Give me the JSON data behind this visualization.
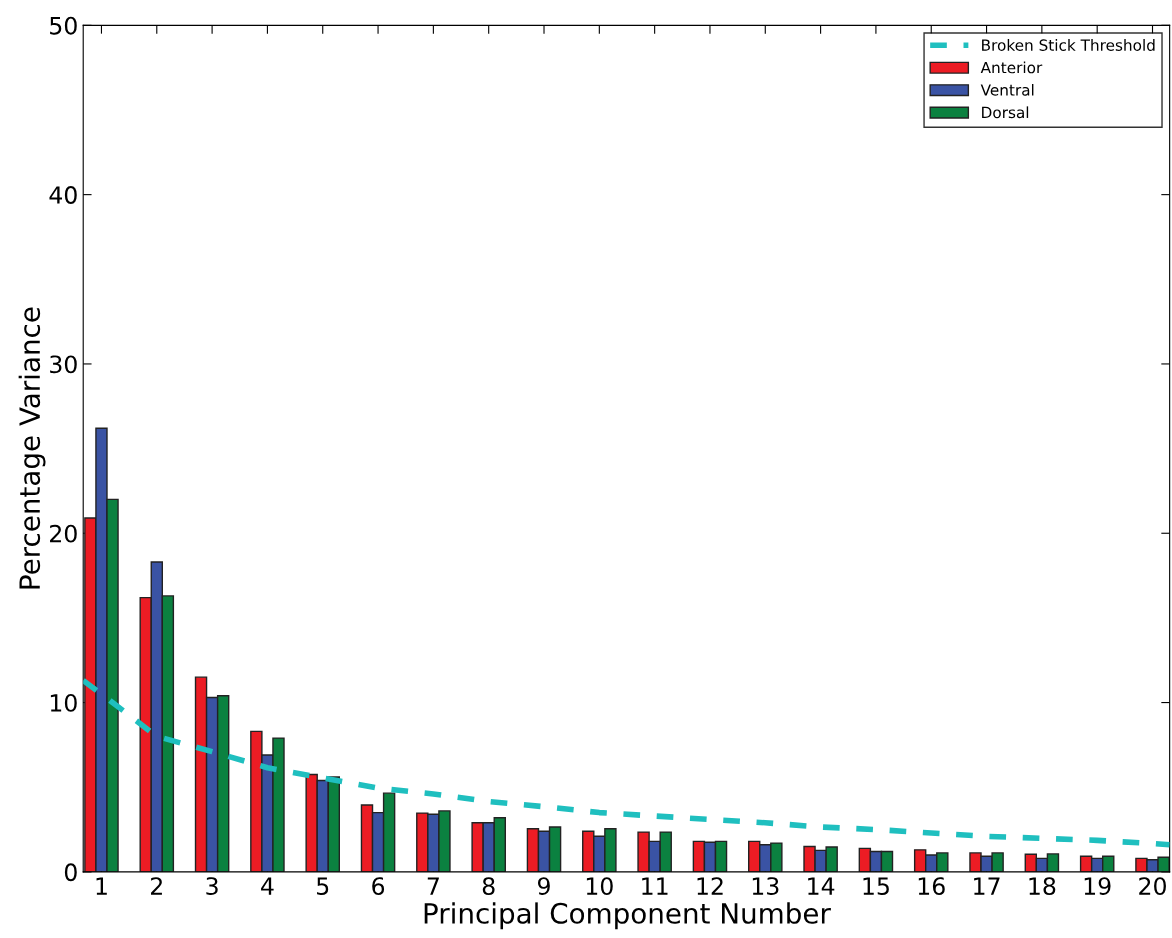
{
  "chart_data": {
    "type": "bar",
    "xlabel": "Principal Component Number",
    "ylabel": "Percentage Variance",
    "x": [
      1,
      2,
      3,
      4,
      5,
      6,
      7,
      8,
      9,
      10,
      11,
      12,
      13,
      14,
      15,
      16,
      17,
      18,
      19,
      20
    ],
    "xlim": [
      0.67,
      20.31
    ],
    "xticks": [
      1,
      2,
      3,
      4,
      5,
      6,
      7,
      8,
      9,
      10,
      11,
      12,
      13,
      14,
      15,
      16,
      17,
      18,
      19,
      20
    ],
    "ylim": [
      0,
      50
    ],
    "yticks": [
      0,
      10,
      20,
      30,
      40,
      50
    ],
    "grid": false,
    "legend": "top right",
    "series": [
      {
        "name": "Broken Stick Threshold",
        "type": "line",
        "line_style": "dashed",
        "color": "#1fbfbf",
        "x": [
          0.67,
          1,
          2,
          3,
          4,
          5,
          6,
          7,
          8,
          9,
          10,
          11,
          12,
          13,
          14,
          15,
          16,
          17,
          18,
          19,
          20,
          20.31
        ],
        "values": [
          11.3,
          10.5,
          8.0,
          7.1,
          6.15,
          5.55,
          4.95,
          4.6,
          4.15,
          3.85,
          3.5,
          3.3,
          3.1,
          2.9,
          2.65,
          2.5,
          2.3,
          2.1,
          1.98,
          1.86,
          1.67,
          1.6
        ]
      },
      {
        "name": "Anterior",
        "color": "#ec1c24",
        "values": [
          20.9,
          16.2,
          11.5,
          8.3,
          5.75,
          3.95,
          3.47,
          2.9,
          2.55,
          2.4,
          2.35,
          1.8,
          1.8,
          1.5,
          1.39,
          1.3,
          1.12,
          1.04,
          0.92,
          0.8
        ]
      },
      {
        "name": "Ventral",
        "color": "#3a53a4",
        "values": [
          26.2,
          18.3,
          10.3,
          6.9,
          5.4,
          3.5,
          3.4,
          2.9,
          2.4,
          2.1,
          1.8,
          1.75,
          1.6,
          1.27,
          1.2,
          1.0,
          0.92,
          0.8,
          0.8,
          0.72
        ]
      },
      {
        "name": "Dorsal",
        "color": "#0b8140",
        "values": [
          22.0,
          16.3,
          10.4,
          7.9,
          5.6,
          4.65,
          3.6,
          3.2,
          2.65,
          2.55,
          2.35,
          1.8,
          1.7,
          1.47,
          1.2,
          1.12,
          1.12,
          1.06,
          0.92,
          0.86
        ]
      }
    ]
  }
}
